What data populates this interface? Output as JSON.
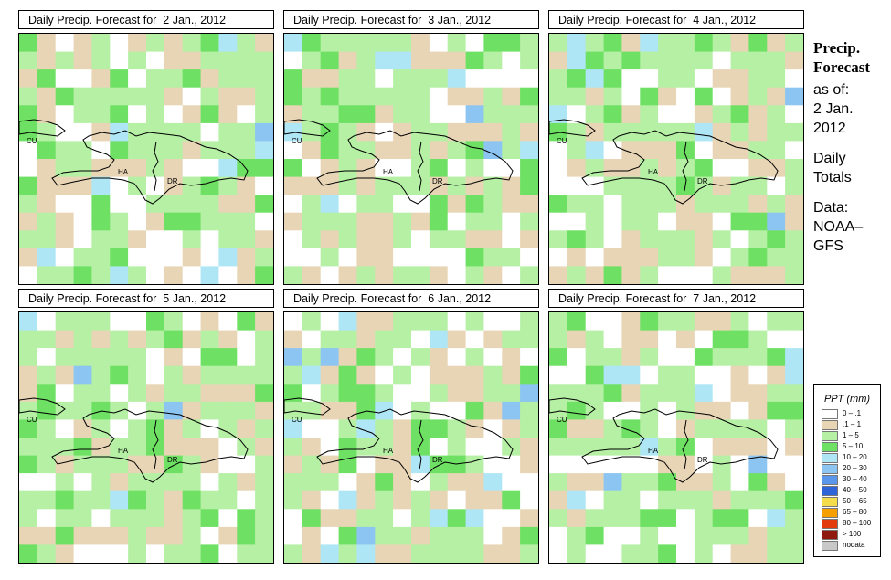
{
  "panels": [
    {
      "title": "Daily Precip. Forecast for  2 Jan., 2012",
      "seed": 11
    },
    {
      "title": "Daily Precip. Forecast for  3 Jan., 2012",
      "seed": 23
    },
    {
      "title": "Daily Precip. Forecast for  4 Jan., 2012",
      "seed": 37
    },
    {
      "title": "Daily Precip. Forecast for  5 Jan., 2012",
      "seed": 41
    },
    {
      "title": "Daily Precip. Forecast for  6 Jan., 2012",
      "seed": 53
    },
    {
      "title": "Daily Precip. Forecast for  7 Jan., 2012",
      "seed": 67
    }
  ],
  "map_labels": {
    "cu": "CU",
    "ha": "HA",
    "dr": "DR"
  },
  "sidebar": {
    "title_line1": "Precip.",
    "title_line2": "Forecast",
    "asof": "as of:",
    "date_line1": "2 Jan.",
    "date_line2": "2012",
    "totals_line1": "Daily",
    "totals_line2": "Totals",
    "data_line1": "Data:",
    "data_line2": "NOAA–",
    "data_line3": "GFS"
  },
  "legend": {
    "title": "PPT (mm)",
    "items": [
      {
        "label": "0 – .1",
        "color": "#ffffff"
      },
      {
        "label": ".1 – 1",
        "color": "#e8d5b5"
      },
      {
        "label": "1 – 5",
        "color": "#b5f0a5"
      },
      {
        "label": "5 – 10",
        "color": "#6ee063"
      },
      {
        "label": "10 – 20",
        "color": "#aee6f5"
      },
      {
        "label": "20 – 30",
        "color": "#8cc4f2"
      },
      {
        "label": "30 – 40",
        "color": "#5a96ea"
      },
      {
        "label": "40 – 50",
        "color": "#2f63d8"
      },
      {
        "label": "50 – 65",
        "color": "#f5dc4a"
      },
      {
        "label": "65 – 80",
        "color": "#f5a000"
      },
      {
        "label": "80 – 100",
        "color": "#e23b0e"
      },
      {
        "label": "> 100",
        "color": "#8e1a10"
      },
      {
        "label": "nodata",
        "color": "#c8c8c8"
      }
    ]
  }
}
